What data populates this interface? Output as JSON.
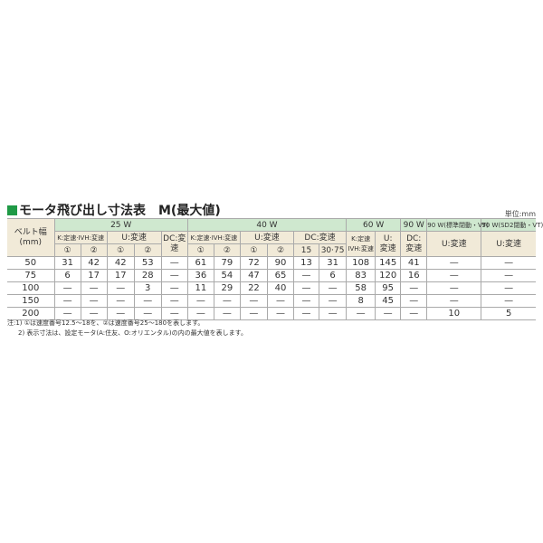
{
  "title": "モータ飛び出し寸法表　M(最大値)",
  "unit": "単位:mm",
  "header": {
    "belt_width": "ベルト幅\n(mm)",
    "groups": [
      "25 W",
      "40 W",
      "60 W",
      "90 W",
      "90 W(標準閉動・VT)",
      "90 W(SD2閉動・VT)"
    ],
    "sub": {
      "k": "K:定速·IVH:変速",
      "u": "U:変速",
      "dc": "DC:変速",
      "dc40": "DC:変速",
      "k60": "K:定速\nIVH:変速",
      "u60": "U:\n変速",
      "dc90": "DC:\n変速",
      "u90a": "U:変速",
      "u90b": "U:変速"
    },
    "marks": [
      "①",
      "②",
      "①",
      "②",
      "①",
      "②",
      "①",
      "②",
      "15",
      "30·75"
    ]
  },
  "rows": [
    {
      "w": "50",
      "v": [
        "31",
        "42",
        "42",
        "53",
        "—",
        "61",
        "79",
        "72",
        "90",
        "13",
        "31",
        "108",
        "145",
        "41",
        "—",
        "—"
      ]
    },
    {
      "w": "75",
      "v": [
        "6",
        "17",
        "17",
        "28",
        "—",
        "36",
        "54",
        "47",
        "65",
        "—",
        "6",
        "83",
        "120",
        "16",
        "—",
        "—"
      ]
    },
    {
      "w": "100",
      "v": [
        "—",
        "—",
        "—",
        "3",
        "—",
        "11",
        "29",
        "22",
        "40",
        "—",
        "—",
        "58",
        "95",
        "—",
        "—",
        "—"
      ]
    },
    {
      "w": "150",
      "v": [
        "—",
        "—",
        "—",
        "—",
        "—",
        "—",
        "—",
        "—",
        "—",
        "—",
        "—",
        "8",
        "45",
        "—",
        "—",
        "—"
      ]
    },
    {
      "w": "200",
      "v": [
        "—",
        "—",
        "—",
        "—",
        "—",
        "—",
        "—",
        "—",
        "—",
        "—",
        "—",
        "—",
        "—",
        "—",
        "10",
        "5"
      ]
    }
  ],
  "notes": [
    "注:1) ①は速度番号12.5～18を、②は速度番号25～180を表します。",
    "2) 表示寸法は、設定モータ(A:住友、O:オリエンタル)の内の最大値を表します。"
  ]
}
